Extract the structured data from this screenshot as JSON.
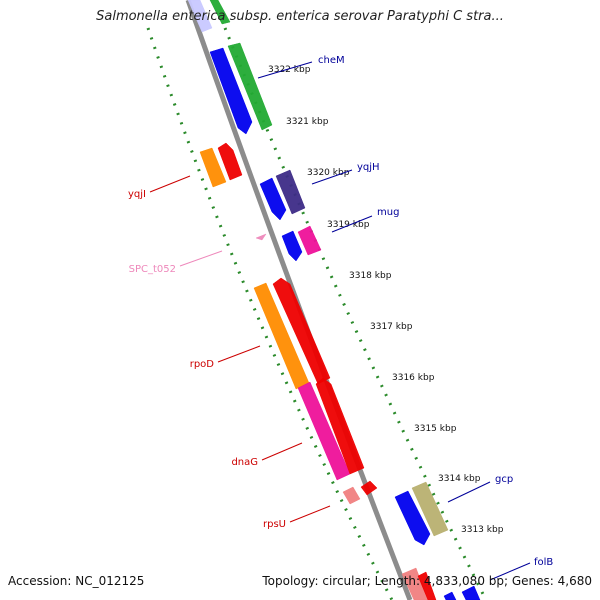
{
  "title": "Salmonella enterica subsp. enterica serovar Paratyphi C stra...",
  "footer": {
    "accession": "Accession: NC_012125",
    "stats": "Topology: circular; Length: 4,833,080 bp; Genes: 4,680"
  },
  "colors": {
    "backbone": "#8c8c8c",
    "dots": "#2a8a2a",
    "blue": "#0000ee",
    "green": "#22aa33",
    "red": "#ee0000",
    "orange": "#ff8c00",
    "magenta": "#ee1199",
    "purple": "#3d2b87",
    "olive": "#b8b070",
    "lavender": "#c8c8ff",
    "pink": "#ee88bb",
    "salmon": "#f08080",
    "label_red": "#cc0000",
    "label_blue": "#000099",
    "label_pink": "#ee88bb"
  },
  "ticks": [
    "3322 kbp",
    "3321 kbp",
    "3320 kbp",
    "3319 kbp",
    "3318 kbp",
    "3317 kbp",
    "3316 kbp",
    "3315 kbp",
    "3314 kbp",
    "3313 kbp"
  ],
  "labels": {
    "cheM": "cheM",
    "yqjH": "yqjH",
    "mug": "mug",
    "gcp": "gcp",
    "folB": "folB",
    "yqjI": "yqjI",
    "SPC_t052": "SPC_t052",
    "rpoD": "rpoD",
    "dnaG": "dnaG",
    "rpsU": "rpsU"
  }
}
